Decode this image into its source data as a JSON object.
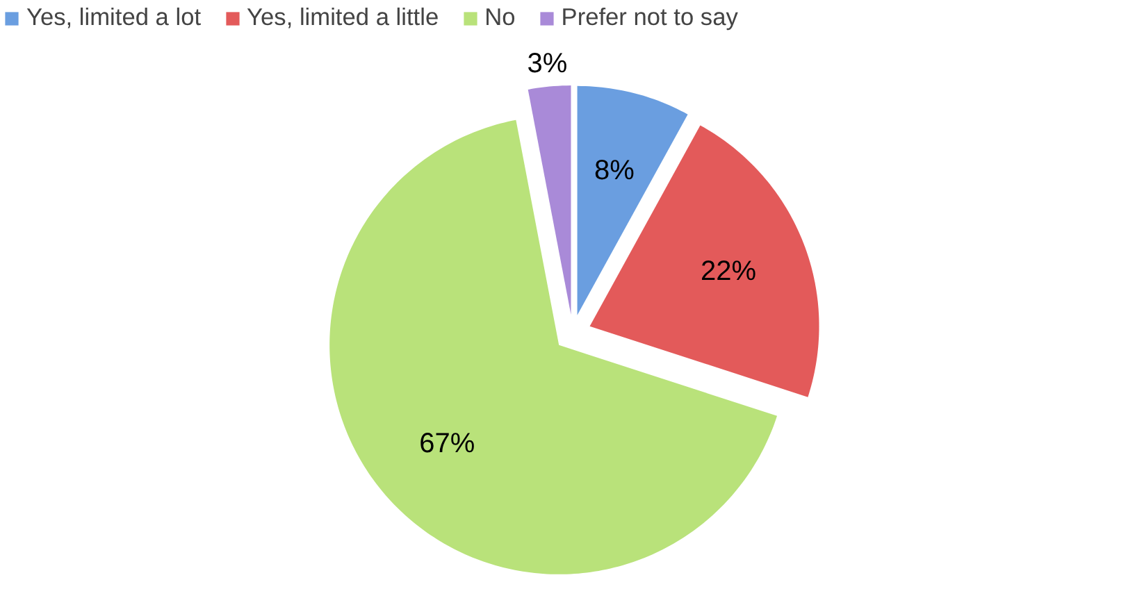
{
  "chart_data": {
    "type": "pie",
    "categories": [
      "Yes, limited a lot",
      "Yes, limited a little",
      "No",
      "Prefer not to say"
    ],
    "values": [
      8,
      22,
      67,
      3
    ],
    "colors": [
      "#6a9ee0",
      "#e35a5a",
      "#b9e27a",
      "#a98ad8"
    ],
    "value_labels": [
      "8%",
      "22%",
      "67%",
      "3%"
    ],
    "legend": "top"
  }
}
